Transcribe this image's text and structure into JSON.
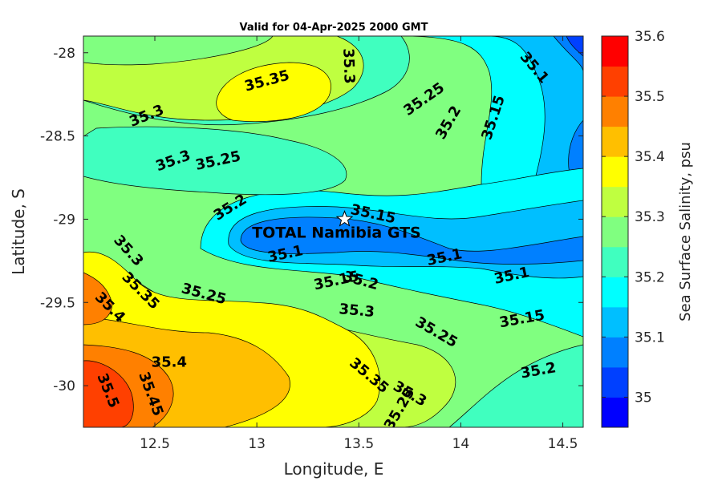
{
  "chart_data": {
    "type": "contour",
    "title": "Valid for 04-Apr-2025 2000 GMT",
    "xlabel": "Longitude, E",
    "ylabel": "Latitude, S",
    "xlim": [
      12.15,
      14.6
    ],
    "ylim": [
      -30.25,
      -27.9
    ],
    "xticks": [
      12.5,
      13,
      13.5,
      14,
      14.5
    ],
    "xtick_labels": [
      "12.5",
      "13",
      "13.5",
      "14",
      "14.5"
    ],
    "yticks": [
      -28,
      -28.5,
      -29,
      -29.5,
      -30
    ],
    "ytick_labels": [
      "-28",
      "-28.5",
      "-29",
      "-29.5",
      "-30"
    ],
    "colorbar": {
      "label": "Sea Surface Salinity, psu",
      "range": [
        34.95,
        35.6
      ],
      "ticks": [
        35,
        35.1,
        35.2,
        35.3,
        35.4,
        35.5,
        35.6
      ],
      "tick_labels": [
        "35",
        "35.1",
        "35.2",
        "35.3",
        "35.4",
        "35.5",
        "35.6"
      ],
      "levels": [
        34.95,
        35.0,
        35.05,
        35.1,
        35.15,
        35.2,
        35.25,
        35.3,
        35.35,
        35.4,
        35.45,
        35.5,
        35.55,
        35.6
      ],
      "colors": [
        "#0000ff",
        "#0040ff",
        "#0080ff",
        "#00bfff",
        "#00ffff",
        "#40ffbf",
        "#80ff80",
        "#bfff40",
        "#ffff00",
        "#ffbf00",
        "#ff8000",
        "#ff4000",
        "#ff0000"
      ]
    },
    "contour_labels": [
      {
        "text": "35.35",
        "lon": 13.05,
        "lat": -28.17,
        "angle": -15
      },
      {
        "text": "35.3",
        "lon": 13.45,
        "lat": -28.08,
        "angle": 88
      },
      {
        "text": "35.3",
        "lon": 12.46,
        "lat": -28.38,
        "angle": -22
      },
      {
        "text": "35.25",
        "lon": 13.82,
        "lat": -28.28,
        "angle": -35
      },
      {
        "text": "35.2",
        "lon": 13.94,
        "lat": -28.42,
        "angle": -60
      },
      {
        "text": "35.15",
        "lon": 14.16,
        "lat": -28.39,
        "angle": -72
      },
      {
        "text": "35.1",
        "lon": 14.36,
        "lat": -28.09,
        "angle": 50
      },
      {
        "text": "35.3",
        "lon": 12.59,
        "lat": -28.65,
        "angle": -20
      },
      {
        "text": "35.25",
        "lon": 12.81,
        "lat": -28.65,
        "angle": -12
      },
      {
        "text": "35.2",
        "lon": 12.87,
        "lat": -28.93,
        "angle": -32
      },
      {
        "text": "35.15",
        "lon": 13.57,
        "lat": -28.97,
        "angle": 12
      },
      {
        "text": "35.1",
        "lon": 13.14,
        "lat": -29.21,
        "angle": -12
      },
      {
        "text": "35.15",
        "lon": 13.39,
        "lat": -29.37,
        "angle": -12
      },
      {
        "text": "35.1",
        "lon": 13.92,
        "lat": -29.23,
        "angle": -12
      },
      {
        "text": "35.1",
        "lon": 14.25,
        "lat": -29.34,
        "angle": -12
      },
      {
        "text": "35.3",
        "lon": 12.37,
        "lat": -29.19,
        "angle": 48
      },
      {
        "text": "35.35",
        "lon": 12.43,
        "lat": -29.43,
        "angle": 45
      },
      {
        "text": "35.4",
        "lon": 12.28,
        "lat": -29.53,
        "angle": 45
      },
      {
        "text": "35.25",
        "lon": 12.74,
        "lat": -29.45,
        "angle": 15
      },
      {
        "text": "35.2",
        "lon": 13.51,
        "lat": -29.37,
        "angle": 15
      },
      {
        "text": "35.3",
        "lon": 13.49,
        "lat": -29.55,
        "angle": 5
      },
      {
        "text": "35.25",
        "lon": 13.88,
        "lat": -29.68,
        "angle": 30
      },
      {
        "text": "35.15",
        "lon": 14.3,
        "lat": -29.6,
        "angle": -10
      },
      {
        "text": "35.4",
        "lon": 12.57,
        "lat": -29.86,
        "angle": 0
      },
      {
        "text": "35.35",
        "lon": 13.55,
        "lat": -29.94,
        "angle": 40
      },
      {
        "text": "35.2",
        "lon": 14.38,
        "lat": -29.91,
        "angle": -10
      },
      {
        "text": "35.5",
        "lon": 12.27,
        "lat": -30.03,
        "angle": 68
      },
      {
        "text": "35.45",
        "lon": 12.48,
        "lat": -30.05,
        "angle": 70
      },
      {
        "text": "35.3",
        "lon": 13.75,
        "lat": -30.05,
        "angle": 30
      },
      {
        "text": "35.25",
        "lon": 13.7,
        "lat": -30.14,
        "angle": -60
      }
    ],
    "marker": {
      "name": "TOTAL Namibia GTS",
      "lon": 13.43,
      "lat": -29.0,
      "symbol": "star"
    }
  }
}
